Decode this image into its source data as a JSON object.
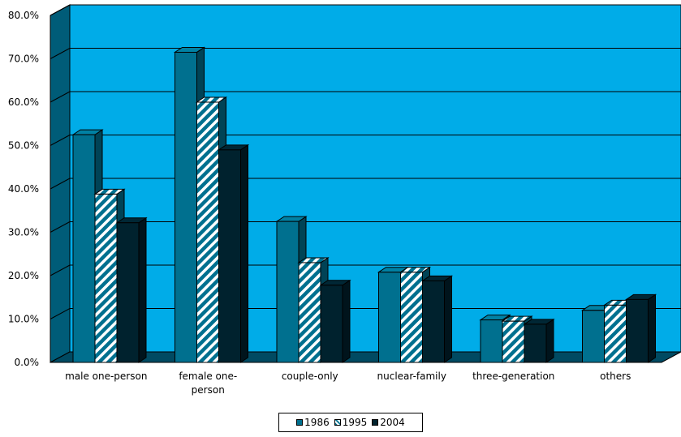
{
  "chart_data": {
    "type": "bar",
    "categories": [
      "male one-person",
      "female one-person",
      "couple-only",
      "nuclear-family",
      "three-generation",
      "others"
    ],
    "category_lines": [
      [
        "male one-person"
      ],
      [
        "female one-",
        "person"
      ],
      [
        "couple-only"
      ],
      [
        "nuclear-family"
      ],
      [
        "three-generation"
      ],
      [
        "others"
      ]
    ],
    "series": [
      {
        "name": "1986",
        "values": [
          52.5,
          71.5,
          32.5,
          20.8,
          9.8,
          12.0
        ],
        "color": "#00708f",
        "pattern": "solid"
      },
      {
        "name": "1995",
        "values": [
          38.8,
          60.0,
          23.0,
          20.8,
          9.5,
          13.2
        ],
        "color": "#00708f",
        "pattern": "hatch"
      },
      {
        "name": "2004",
        "values": [
          32.2,
          49.0,
          17.8,
          18.8,
          8.8,
          14.5
        ],
        "color": "#00222e",
        "pattern": "solid"
      }
    ],
    "yticks": [
      "0.0%",
      "10.0%",
      "20.0%",
      "30.0%",
      "40.0%",
      "50.0%",
      "60.0%",
      "70.0%",
      "80.0%"
    ],
    "ylim": [
      0,
      80
    ],
    "grid": true,
    "legend": "bottom",
    "colors": {
      "plot_area": "#00ace8",
      "wall_side": "#005c78",
      "floor": "#004a62"
    }
  }
}
